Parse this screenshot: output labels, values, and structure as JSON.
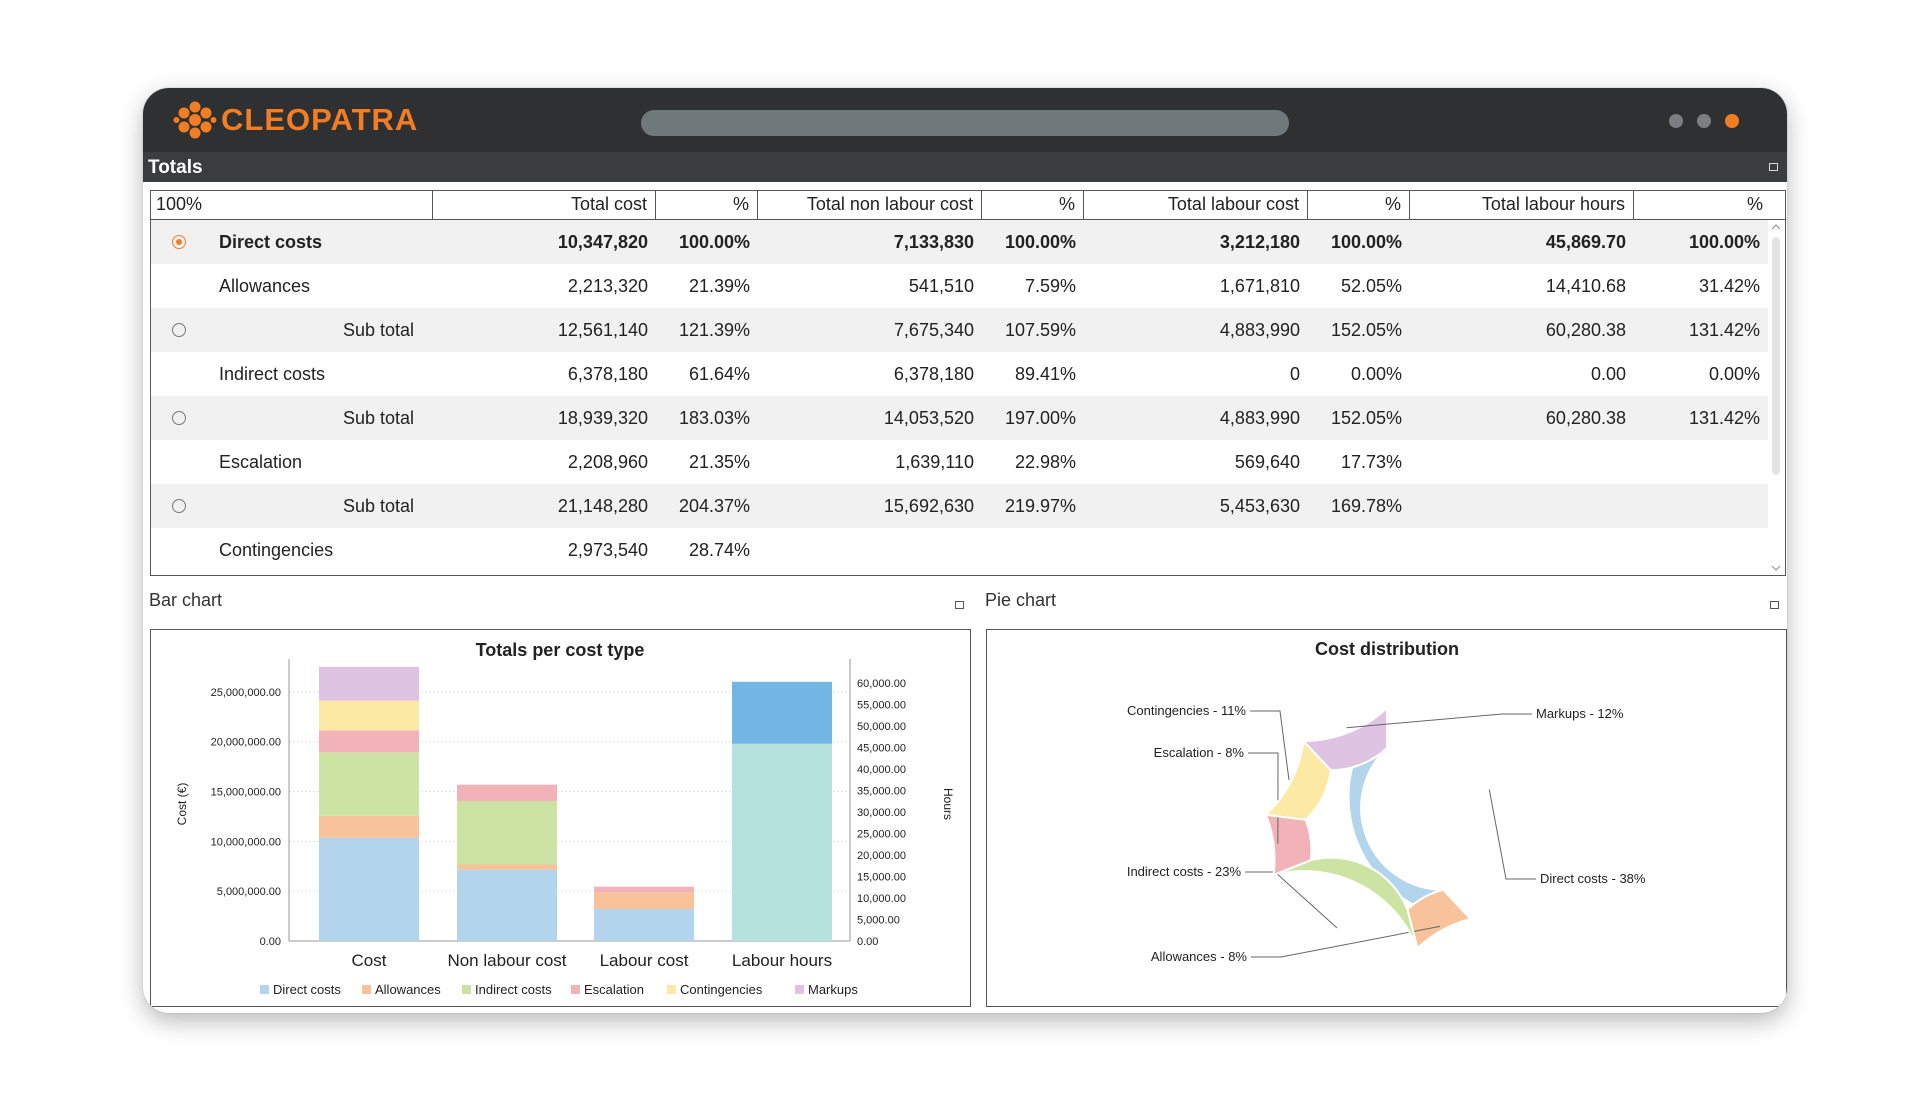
{
  "app": {
    "brand": "CLEOPATRA",
    "logo_icon": "flower-logo-icon",
    "window_dots": [
      "#7b7f82",
      "#7b7f82",
      "#f27d22"
    ]
  },
  "totals_panel": {
    "title": "Totals",
    "columns": [
      "100%",
      "Total cost",
      "%",
      "Total non labour cost",
      "%",
      "Total labour cost",
      "%",
      "Total labour hours",
      "%"
    ],
    "rows": [
      {
        "label": "Direct costs",
        "indent": false,
        "bold": true,
        "radio": "selected",
        "values": [
          "10,347,820",
          "100.00%",
          "7,133,830",
          "100.00%",
          "3,212,180",
          "100.00%",
          "45,869.70",
          "100.00%"
        ]
      },
      {
        "label": "Allowances",
        "indent": false,
        "bold": false,
        "radio": "none",
        "values": [
          "2,213,320",
          "21.39%",
          "541,510",
          "7.59%",
          "1,671,810",
          "52.05%",
          "14,410.68",
          "31.42%"
        ]
      },
      {
        "label": "Sub total",
        "indent": true,
        "bold": false,
        "radio": "unselected",
        "values": [
          "12,561,140",
          "121.39%",
          "7,675,340",
          "107.59%",
          "4,883,990",
          "152.05%",
          "60,280.38",
          "131.42%"
        ]
      },
      {
        "label": "Indirect costs",
        "indent": false,
        "bold": false,
        "radio": "none",
        "values": [
          "6,378,180",
          "61.64%",
          "6,378,180",
          "89.41%",
          "0",
          "0.00%",
          "0.00",
          "0.00%"
        ]
      },
      {
        "label": "Sub total",
        "indent": true,
        "bold": false,
        "radio": "unselected",
        "values": [
          "18,939,320",
          "183.03%",
          "14,053,520",
          "197.00%",
          "4,883,990",
          "152.05%",
          "60,280.38",
          "131.42%"
        ]
      },
      {
        "label": "Escalation",
        "indent": false,
        "bold": false,
        "radio": "none",
        "values": [
          "2,208,960",
          "21.35%",
          "1,639,110",
          "22.98%",
          "569,640",
          "17.73%",
          "",
          ""
        ]
      },
      {
        "label": "Sub total",
        "indent": true,
        "bold": false,
        "radio": "unselected",
        "values": [
          "21,148,280",
          "204.37%",
          "15,692,630",
          "219.97%",
          "5,453,630",
          "169.78%",
          "",
          ""
        ]
      },
      {
        "label": "Contingencies",
        "indent": false,
        "bold": false,
        "radio": "none",
        "values": [
          "2,973,540",
          "28.74%",
          "",
          "",
          "",
          "",
          "",
          ""
        ]
      }
    ]
  },
  "bar_panel": {
    "title": "Bar chart"
  },
  "pie_panel": {
    "title": "Pie chart"
  },
  "colors": {
    "Direct costs": "#b3d4ed",
    "Allowances": "#f8c39a",
    "Indirect costs": "#cde3a3",
    "Escalation": "#f2b3b8",
    "Contingencies": "#fce9a3",
    "Markups": "#dec3e3",
    "Labour hours bottom": "#b4e3dd",
    "Labour hours top": "#73b5e3"
  },
  "chart_data": [
    {
      "type": "bar",
      "stacked": true,
      "title": "Totals per cost type",
      "ylabel": "Cost (€)",
      "y2label": "Hours",
      "ylim": [
        0,
        27500000
      ],
      "y2lim": [
        0,
        60000
      ],
      "yticks": [
        "0.00",
        "5,000,000.00",
        "10,000,000.00",
        "15,000,000.00",
        "20,000,000.00",
        "25,000,000.00"
      ],
      "y2ticks": [
        "0.00",
        "5,000.00",
        "10,000.00",
        "15,000.00",
        "20,000.00",
        "25,000.00",
        "30,000.00",
        "35,000.00",
        "40,000.00",
        "45,000.00",
        "50,000.00",
        "55,000.00",
        "60,000.00"
      ],
      "categories": [
        "Cost",
        "Non labour cost",
        "Labour cost",
        "Labour hours"
      ],
      "series": [
        {
          "name": "Direct costs",
          "values": [
            10347820,
            7133830,
            3212180,
            null
          ]
        },
        {
          "name": "Allowances",
          "values": [
            2213320,
            541510,
            1671810,
            null
          ]
        },
        {
          "name": "Indirect costs",
          "values": [
            6378180,
            6378180,
            0,
            null
          ]
        },
        {
          "name": "Escalation",
          "values": [
            2208960,
            1639110,
            569640,
            null
          ]
        },
        {
          "name": "Contingencies",
          "values": [
            2973540,
            null,
            null,
            null
          ]
        },
        {
          "name": "Markups",
          "values": [
            3400000,
            null,
            null,
            null
          ]
        }
      ],
      "hours_stack": [
        45869.7,
        14410.68
      ],
      "legend": [
        "Direct costs",
        "Allowances",
        "Indirect costs",
        "Escalation",
        "Contingencies",
        "Markups"
      ],
      "legend_position": "bottom",
      "grid": true
    },
    {
      "type": "pie",
      "donut": true,
      "title": "Cost distribution",
      "slices": [
        {
          "name": "Direct costs",
          "label": "Direct costs - 38%",
          "value": 38
        },
        {
          "name": "Allowances",
          "label": "Allowances - 8%",
          "value": 8
        },
        {
          "name": "Indirect costs",
          "label": "Indirect costs - 23%",
          "value": 23
        },
        {
          "name": "Escalation",
          "label": "Escalation - 8%",
          "value": 8
        },
        {
          "name": "Contingencies",
          "label": "Contingencies - 11%",
          "value": 11
        },
        {
          "name": "Markups",
          "label": "Markups - 12%",
          "value": 12
        }
      ]
    }
  ]
}
